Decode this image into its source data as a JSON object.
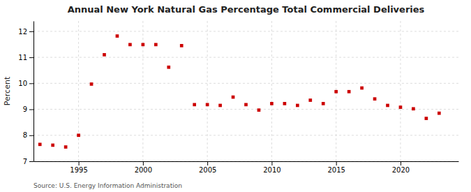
{
  "chart_data": {
    "type": "scatter",
    "title": "Annual New York Natural Gas Percentage Total Commercial Deliveries",
    "ylabel": "Percent",
    "annotation": "Source: U.S. Energy Information Administration",
    "color": "#cc0000",
    "marker": "square",
    "grid": true,
    "xlim": [
      1991.5,
      2024.5
    ],
    "ylim": [
      7,
      12.4
    ],
    "xticks": [
      1995,
      2000,
      2005,
      2010,
      2015,
      2020
    ],
    "yticks": [
      7,
      8,
      9,
      10,
      11,
      12
    ],
    "x": [
      1992,
      1993,
      1994,
      1995,
      1996,
      1997,
      1998,
      1999,
      2000,
      2001,
      2002,
      2003,
      2004,
      2005,
      2006,
      2007,
      2008,
      2009,
      2010,
      2011,
      2012,
      2013,
      2014,
      2015,
      2016,
      2017,
      2018,
      2019,
      2020,
      2021,
      2022,
      2023
    ],
    "values": [
      7.65,
      7.62,
      7.55,
      8.0,
      9.97,
      11.1,
      11.82,
      11.49,
      11.49,
      11.49,
      10.62,
      11.45,
      9.18,
      9.18,
      9.15,
      9.47,
      9.18,
      8.97,
      9.22,
      9.22,
      9.15,
      9.35,
      9.22,
      9.68,
      9.68,
      9.82,
      9.4,
      9.15,
      9.08,
      9.02,
      8.65,
      8.85
    ]
  }
}
